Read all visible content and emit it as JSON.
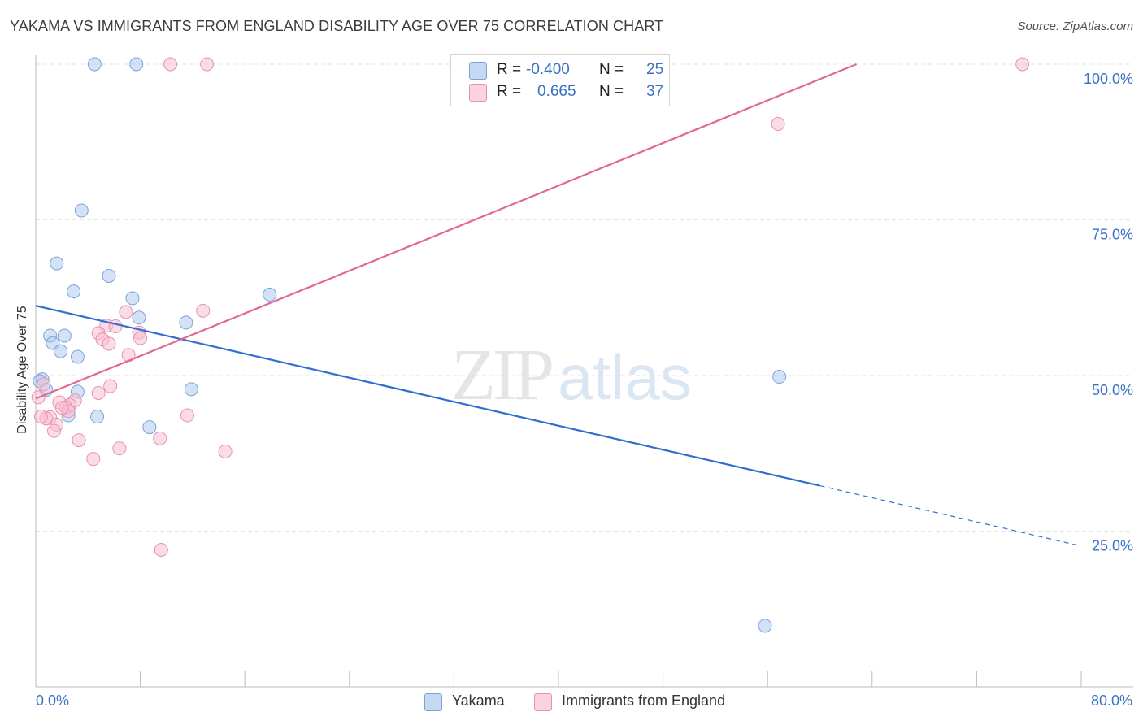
{
  "title": "YAKAMA VS IMMIGRANTS FROM ENGLAND DISABILITY AGE OVER 75 CORRELATION CHART",
  "source": "Source: ZipAtlas.com",
  "watermark": {
    "zip": "ZIP",
    "atlas": "atlas"
  },
  "legend": {
    "rows": [
      {
        "r_label": "R =",
        "r_value": "-0.400",
        "n_label": "N =",
        "n_value": "25",
        "color": "#aecbef",
        "stroke": "#7ba3d9"
      },
      {
        "r_label": "R =",
        "r_value": "0.665",
        "n_label": "N =",
        "n_value": "37",
        "color": "#f6bfd1",
        "stroke": "#e990af"
      }
    ]
  },
  "bottom_legend": [
    "Yakama",
    "Immigrants from England"
  ],
  "chart_data": {
    "type": "scatter",
    "title": "YAKAMA VS IMMIGRANTS FROM ENGLAND DISABILITY AGE OVER 75 CORRELATION CHART",
    "xlabel": "",
    "ylabel": "Disability Age Over 75",
    "xlim": [
      0,
      80
    ],
    "ylim": [
      0,
      100
    ],
    "x_tick_labels": [
      "0.0%",
      "80.0%"
    ],
    "y_ticks": [
      25,
      50,
      75,
      100
    ],
    "y_tick_labels": [
      "25.0%",
      "50.0%",
      "75.0%",
      "100.0%"
    ],
    "grid": true,
    "legend_position": "top-center",
    "series": [
      {
        "name": "Yakama",
        "color": "#aecbef",
        "stroke": "#7ba3d9",
        "line_color": "#2f6fce",
        "r": -0.4,
        "n": 25,
        "trend": {
          "x0": 0,
          "y0": 61.2,
          "x1": 60,
          "y1": 32.3,
          "dash_to_x": 80,
          "dash_to_y": 22.6
        },
        "points": [
          [
            4.5,
            100
          ],
          [
            7.7,
            100
          ],
          [
            3.5,
            76.5
          ],
          [
            1.6,
            68.0
          ],
          [
            5.6,
            66.0
          ],
          [
            2.9,
            63.5
          ],
          [
            7.4,
            62.4
          ],
          [
            17.9,
            63.0
          ],
          [
            7.9,
            59.3
          ],
          [
            11.5,
            58.5
          ],
          [
            1.1,
            56.4
          ],
          [
            2.2,
            56.4
          ],
          [
            1.3,
            55.2
          ],
          [
            1.9,
            53.9
          ],
          [
            3.2,
            53.0
          ],
          [
            0.5,
            49.4
          ],
          [
            0.3,
            49.1
          ],
          [
            0.8,
            47.7
          ],
          [
            3.2,
            47.4
          ],
          [
            11.9,
            47.8
          ],
          [
            2.5,
            43.6
          ],
          [
            4.7,
            43.4
          ],
          [
            8.7,
            41.7
          ],
          [
            56.9,
            49.8
          ],
          [
            55.8,
            9.8
          ]
        ]
      },
      {
        "name": "Immigrants from England",
        "color": "#f6bfd1",
        "stroke": "#e990af",
        "line_color": "#e2688f",
        "r": 0.665,
        "n": 37,
        "trend": {
          "x0": 0,
          "y0": 46.3,
          "x1": 62.8,
          "y1": 100
        },
        "points": [
          [
            10.3,
            100
          ],
          [
            13.1,
            100
          ],
          [
            33.0,
            100
          ],
          [
            75.5,
            100
          ],
          [
            56.8,
            90.4
          ],
          [
            6.9,
            60.2
          ],
          [
            12.8,
            60.4
          ],
          [
            5.4,
            58.0
          ],
          [
            6.1,
            57.9
          ],
          [
            4.8,
            56.8
          ],
          [
            7.9,
            56.9
          ],
          [
            8.0,
            56.0
          ],
          [
            5.1,
            55.8
          ],
          [
            5.6,
            55.1
          ],
          [
            7.1,
            53.3
          ],
          [
            0.6,
            48.6
          ],
          [
            5.7,
            48.3
          ],
          [
            4.8,
            47.2
          ],
          [
            0.2,
            46.5
          ],
          [
            3.0,
            46.0
          ],
          [
            1.8,
            45.7
          ],
          [
            2.6,
            45.3
          ],
          [
            2.3,
            44.9
          ],
          [
            2.5,
            44.3
          ],
          [
            1.1,
            43.3
          ],
          [
            0.8,
            43.1
          ],
          [
            11.6,
            43.6
          ],
          [
            1.6,
            42.1
          ],
          [
            1.4,
            41.1
          ],
          [
            3.3,
            39.6
          ],
          [
            9.5,
            39.9
          ],
          [
            6.4,
            38.3
          ],
          [
            14.5,
            37.8
          ],
          [
            4.4,
            36.6
          ],
          [
            9.6,
            22.0
          ],
          [
            0.4,
            43.4
          ],
          [
            2.0,
            44.8
          ]
        ]
      }
    ]
  }
}
